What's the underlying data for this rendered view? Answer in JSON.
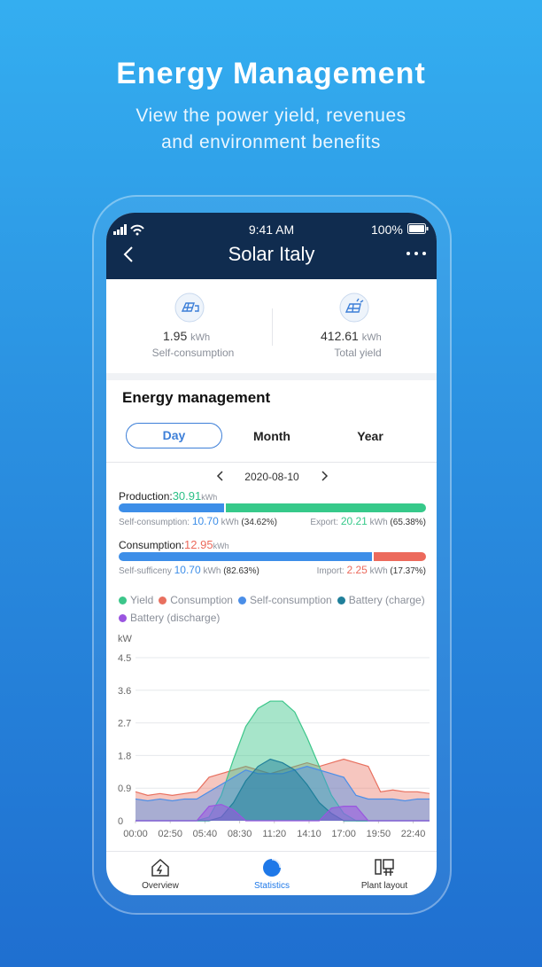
{
  "header": {
    "title": "Energy Management",
    "subtitle": [
      "View the power yield, revenues",
      "and environment benefits"
    ]
  },
  "status_bar": {
    "time": "9:41 AM",
    "battery": "100%"
  },
  "nav": {
    "title": "Solar Italy"
  },
  "summary": [
    {
      "value": "1.95",
      "unit": "kWh",
      "label": "Self-consumption"
    },
    {
      "value": "412.61",
      "unit": "kWh",
      "label": "Total yield"
    }
  ],
  "section": {
    "title": "Energy management",
    "tabs": [
      "Day",
      "Month",
      "Year"
    ],
    "date": "2020-08-10"
  },
  "production": {
    "label": "Production:",
    "value": "30.91",
    "unit": "kWh",
    "color": "#2bbf86",
    "parts": [
      {
        "label": "Self-consumption:",
        "value": "10.70",
        "unit": "kWh",
        "percent": "(34.62%)",
        "color": "#3d8ee8"
      },
      {
        "label": "Export:",
        "value": "20.21",
        "unit": "kWh",
        "percent": "(65.38%)",
        "color": "#36c98a"
      }
    ]
  },
  "consumption": {
    "label": "Consumption:",
    "value": "12.95",
    "unit": "kWh",
    "color": "#ec6a5c",
    "parts": [
      {
        "label": "Self-sufficeny",
        "value": "10.70",
        "unit": "kWh",
        "percent": "(82.63%)",
        "color": "#3d8ee8"
      },
      {
        "label": "Import:",
        "value": "2.25",
        "unit": "kWh",
        "percent": "(17.37%)",
        "color": "#ec6a5c"
      }
    ]
  },
  "chart_data": {
    "type": "area",
    "y_label": "kW",
    "x": [
      0,
      60,
      120,
      180,
      240,
      300,
      360,
      420,
      480,
      540,
      600,
      660,
      720,
      780,
      840,
      900,
      960,
      1020,
      1080,
      1140,
      1200,
      1260,
      1320,
      1380,
      1440
    ],
    "xlim": [
      0,
      1440
    ],
    "xticks": [
      {
        "value": 0,
        "label": "00:00"
      },
      {
        "value": 170,
        "label": "02:50"
      },
      {
        "value": 340,
        "label": "05:40"
      },
      {
        "value": 510,
        "label": "08:30"
      },
      {
        "value": 680,
        "label": "11:20"
      },
      {
        "value": 850,
        "label": "14:10"
      },
      {
        "value": 1020,
        "label": "17:00"
      },
      {
        "value": 1190,
        "label": "19:50"
      },
      {
        "value": 1360,
        "label": "22:40"
      }
    ],
    "ylim": [
      0,
      4.5
    ],
    "yticks": [
      0,
      0.9,
      1.8,
      2.7,
      3.6,
      4.5
    ],
    "grid": true,
    "series": [
      {
        "name": "Yield",
        "color": "#3cc68a",
        "values": [
          0,
          0,
          0,
          0,
          0,
          0,
          0.1,
          0.7,
          1.7,
          2.6,
          3.1,
          3.3,
          3.3,
          3.0,
          2.3,
          1.5,
          0.7,
          0.2,
          0,
          0,
          0,
          0,
          0,
          0,
          0
        ]
      },
      {
        "name": "Consumption",
        "color": "#e8705f",
        "values": [
          0.8,
          0.7,
          0.75,
          0.7,
          0.75,
          0.8,
          1.2,
          1.3,
          1.4,
          1.5,
          1.4,
          1.3,
          1.4,
          1.5,
          1.6,
          1.5,
          1.6,
          1.7,
          1.6,
          1.5,
          0.8,
          0.85,
          0.8,
          0.8,
          0.75
        ]
      },
      {
        "name": "Self-consumption",
        "color": "#4a8ee8",
        "values": [
          0.6,
          0.55,
          0.6,
          0.55,
          0.6,
          0.6,
          0.8,
          1.0,
          1.2,
          1.4,
          1.3,
          1.3,
          1.3,
          1.4,
          1.5,
          1.4,
          1.3,
          1.2,
          0.7,
          0.6,
          0.6,
          0.6,
          0.55,
          0.6,
          0.6
        ]
      },
      {
        "name": "Battery (charge)",
        "color": "#1f7f9a",
        "values": [
          0,
          0,
          0,
          0,
          0,
          0,
          0,
          0.1,
          0.5,
          1.1,
          1.5,
          1.7,
          1.6,
          1.4,
          1.0,
          0.5,
          0.2,
          0,
          0,
          0,
          0,
          0,
          0,
          0,
          0
        ]
      },
      {
        "name": "Battery (discharge)",
        "color": "#9a55e0",
        "values": [
          0,
          0,
          0,
          0,
          0,
          0,
          0.4,
          0.45,
          0.3,
          0,
          0,
          0,
          0,
          0,
          0,
          0,
          0.35,
          0.4,
          0.4,
          0,
          0,
          0,
          0,
          0,
          0
        ]
      }
    ]
  },
  "tabbar": [
    "Overview",
    "Statistics",
    "Plant layout"
  ]
}
